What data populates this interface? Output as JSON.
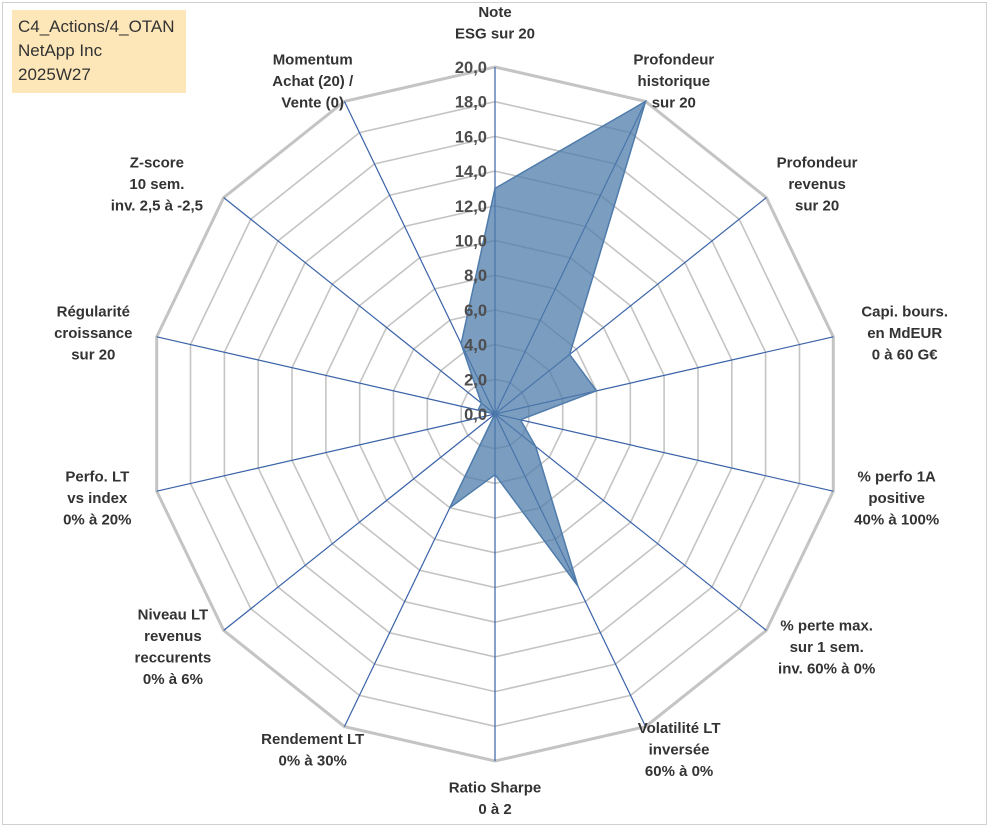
{
  "info_box": {
    "line1": "C4_Actions/4_OTAN",
    "line2": "NetApp Inc",
    "line3": "2025W27"
  },
  "chart_data": {
    "type": "radar",
    "title": "",
    "axes": [
      [
        "Note",
        "ESG sur 20"
      ],
      [
        "Profondeur",
        "historique",
        "sur 20"
      ],
      [
        "Profondeur",
        "revenus",
        "sur 20"
      ],
      [
        "Capi. bours.",
        "en MdEUR",
        "0 à 60 G€"
      ],
      [
        "% perfo 1A",
        "positive",
        "40% à 100%"
      ],
      [
        "% perte max.",
        "sur 1 sem.",
        "inv. 60% à 0%"
      ],
      [
        "Volatilité LT",
        "inversée",
        "60% à 0%"
      ],
      [
        "Ratio Sharpe",
        "0 à 2"
      ],
      [
        "Rendement LT",
        "0% à 30%"
      ],
      [
        "Niveau LT",
        "revenus",
        "reccurents",
        "0% à 6%"
      ],
      [
        "Perfo. LT",
        "vs index",
        "0% à 20%"
      ],
      [
        "Régularité",
        "croissance",
        "sur 20"
      ],
      [
        "Z-score",
        "10 sem.",
        "inv. 2,5 à -2,5"
      ],
      [
        "Momentum",
        "Achat (20) /",
        "Vente (0)"
      ]
    ],
    "scale": {
      "min": 0,
      "max": 20,
      "step": 2
    },
    "tick_labels": [
      "0,0",
      "2,0",
      "4,0",
      "6,0",
      "8,0",
      "10,0",
      "12,0",
      "14,0",
      "16,0",
      "18,0",
      "20,0"
    ],
    "series": [
      {
        "values": [
          13.0,
          20.0,
          5.5,
          6.0,
          1.5,
          3.0,
          11.0,
          3.5,
          6.0,
          0.0,
          0.0,
          1.0,
          1.0,
          4.5
        ],
        "color": "#4f7cab"
      }
    ],
    "grid": true,
    "grid_color": "#c4c4c4",
    "spoke_color": "#3a62a8"
  }
}
